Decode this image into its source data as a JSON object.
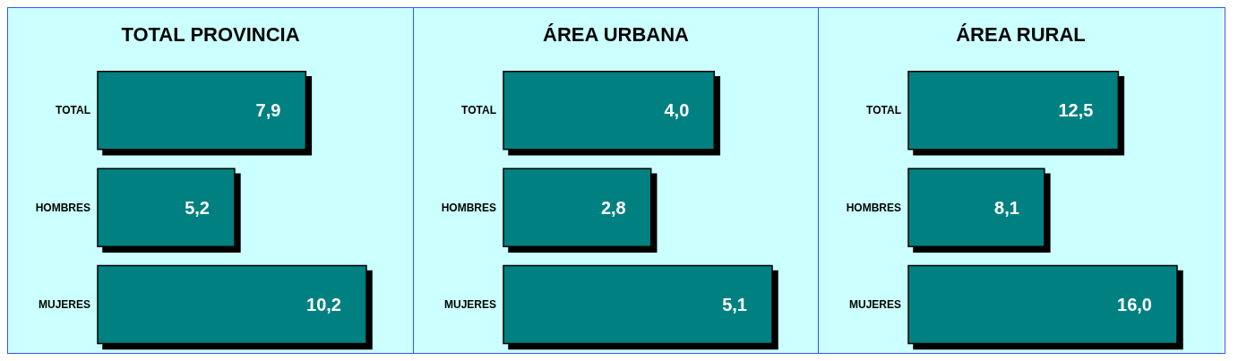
{
  "chart_data": [
    {
      "type": "bar",
      "orientation": "horizontal",
      "title": "TOTAL PROVINCIA",
      "categories": [
        "TOTAL",
        "HOMBRES",
        "MUJERES"
      ],
      "values": [
        7.9,
        5.2,
        10.2
      ],
      "value_labels": [
        "7,9",
        "5,2",
        "10,2"
      ],
      "color": "#008080"
    },
    {
      "type": "bar",
      "orientation": "horizontal",
      "title": "ÁREA URBANA",
      "categories": [
        "TOTAL",
        "HOMBRES",
        "MUJERES"
      ],
      "values": [
        4.0,
        2.8,
        5.1
      ],
      "value_labels": [
        "4,0",
        "2,8",
        "5,1"
      ],
      "color": "#008080"
    },
    {
      "type": "bar",
      "orientation": "horizontal",
      "title": "ÁREA RURAL",
      "categories": [
        "TOTAL",
        "HOMBRES",
        "MUJERES"
      ],
      "values": [
        12.5,
        8.1,
        16.0
      ],
      "value_labels": [
        "12,5",
        "8,1",
        "16,0"
      ],
      "color": "#008080"
    }
  ]
}
